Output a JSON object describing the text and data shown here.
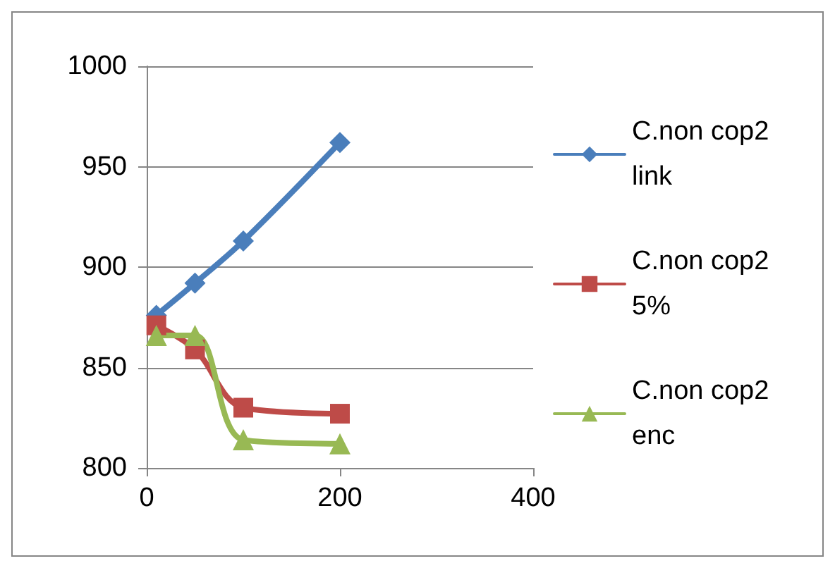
{
  "chart_data": {
    "type": "line",
    "x": [
      10,
      50,
      100,
      200
    ],
    "series": [
      {
        "name": "C.non cop2 link",
        "color": "#4a7ebb",
        "marker": "diamond",
        "values": [
          876,
          892,
          913,
          962
        ]
      },
      {
        "name": "C.non cop2 5%",
        "color": "#be4b48",
        "marker": "square",
        "values": [
          871,
          859,
          830,
          827
        ]
      },
      {
        "name": "C.non cop2 enc",
        "color": "#98b954",
        "marker": "triangle",
        "values": [
          866,
          866,
          814,
          812
        ]
      }
    ],
    "xlim": [
      0,
      400
    ],
    "xticks": [
      0,
      200,
      400
    ],
    "ylim": [
      800,
      1000
    ],
    "yticks": [
      800,
      850,
      900,
      950,
      1000
    ],
    "grid": "y",
    "legend": "right"
  }
}
